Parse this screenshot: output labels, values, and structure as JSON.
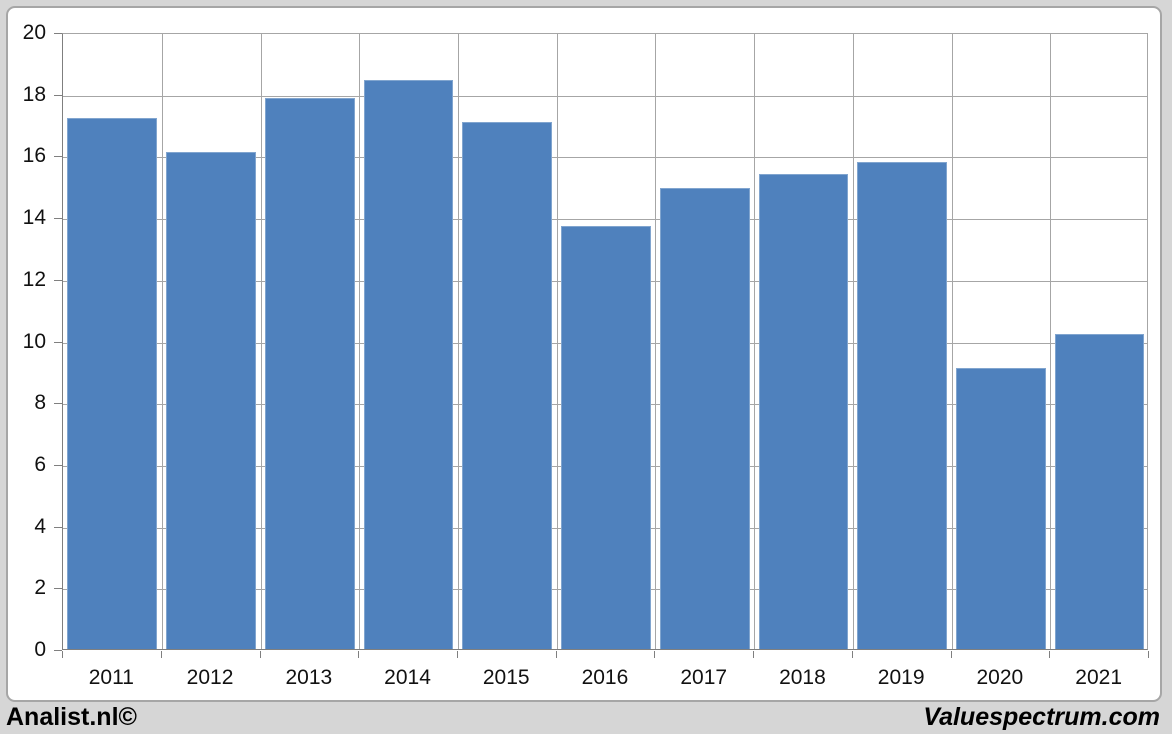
{
  "page": {
    "background_color": "#d6d6d6",
    "chart_background": "#ffffff",
    "frame_border_color": "#a6a6a6"
  },
  "footer": {
    "left_text": "Analist.nl©",
    "right_text": "Valuespectrum.com"
  },
  "chart_data": {
    "type": "bar",
    "title": "",
    "xlabel": "",
    "ylabel": "",
    "categories": [
      "2011",
      "2012",
      "2013",
      "2014",
      "2015",
      "2016",
      "2017",
      "2018",
      "2019",
      "2020",
      "2021"
    ],
    "values": [
      17.2,
      16.1,
      17.85,
      18.45,
      17.1,
      13.7,
      14.95,
      15.4,
      15.8,
      9.1,
      10.2
    ],
    "ylim": [
      0,
      20
    ],
    "ytick_step": 2,
    "ytick_labels": [
      "0",
      "2",
      "4",
      "6",
      "8",
      "10",
      "12",
      "14",
      "16",
      "18",
      "20"
    ],
    "grid": true,
    "legend": "none",
    "bar_color": "#4f81bd",
    "bar_border_color": "#81a5cf",
    "gridline_color": "#a6a6a6",
    "axis_color": "#7f7f7f",
    "tick_label_color": "#111111",
    "bar_width_fraction": 0.91
  }
}
